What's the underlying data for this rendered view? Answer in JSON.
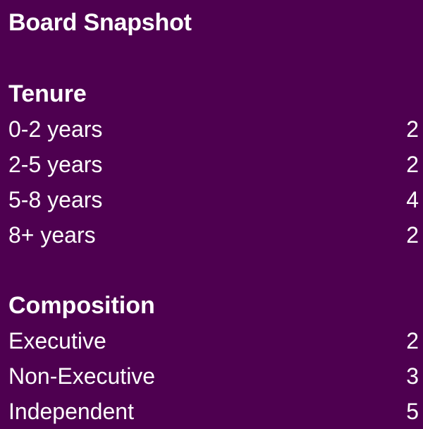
{
  "title": "Board Snapshot",
  "sections": [
    {
      "heading": "Tenure",
      "rows": [
        {
          "label": "0-2 years",
          "value": "2"
        },
        {
          "label": "2-5 years",
          "value": "2"
        },
        {
          "label": "5-8 years",
          "value": "4"
        },
        {
          "label": "8+ years",
          "value": "2"
        }
      ]
    },
    {
      "heading": "Composition",
      "rows": [
        {
          "label": "Executive",
          "value": "2"
        },
        {
          "label": "Non-Executive",
          "value": "3"
        },
        {
          "label": "Independent",
          "value": "5"
        }
      ]
    }
  ],
  "colors": {
    "background": "#4e0050",
    "text": "#ffffff"
  }
}
